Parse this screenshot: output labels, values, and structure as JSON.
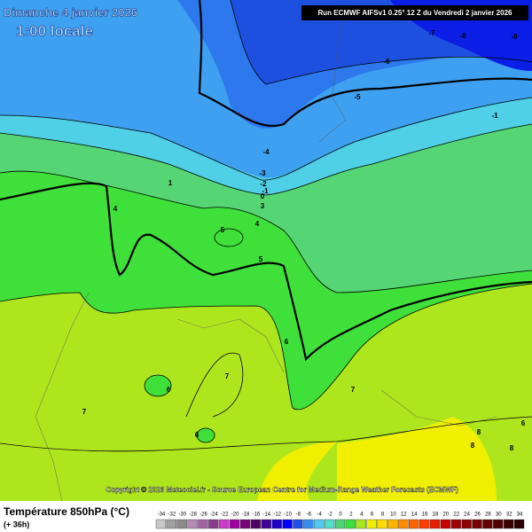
{
  "header": {
    "date": "Dimanche 4 janvier 2026",
    "time": "1:00 locale",
    "run": "Run ECMWF AIFSv1 0.25° 12 Z du Vendredi 2 janvier 2026"
  },
  "copyright": "Copyright © 2026 Meteociel.fr - Source European Centre for Medium-Range Weather Forecasts (ECMWF)",
  "footer": {
    "title": "Température 850hPa (°C)",
    "lead": "(+ 36h)"
  },
  "contour_labels": [
    "-7",
    "-8",
    "-9",
    "-6",
    "-5",
    "-1",
    "-4",
    "-3",
    "-2",
    "-1",
    "0",
    "1",
    "3",
    "4",
    "4",
    "5",
    "5",
    "6",
    "6",
    "6",
    "7",
    "7",
    "7",
    "8",
    "8",
    "6",
    "8"
  ],
  "legend": {
    "labels": [
      "-34",
      "-32",
      "-30",
      "-28",
      "-26",
      "-24",
      "-22",
      "-20",
      "-18",
      "-16",
      "-14",
      "-12",
      "-10",
      "-8",
      "-6",
      "-4",
      "-2",
      "0",
      "2",
      "4",
      "6",
      "8",
      "10",
      "12",
      "14",
      "16",
      "18",
      "20",
      "22",
      "24",
      "26",
      "28",
      "30",
      "32",
      "34"
    ],
    "colors": [
      "#c8c8c8",
      "#a0a0a0",
      "#8c8c8c",
      "#b48cb4",
      "#a064a0",
      "#8c3c8c",
      "#c83cc8",
      "#a000a0",
      "#780078",
      "#500064",
      "#3c0096",
      "#1e00c8",
      "#0000ff",
      "#1e50e6",
      "#3c8cf0",
      "#50c8f0",
      "#50e0c8",
      "#50d478",
      "#3ce03c",
      "#aae61e",
      "#f0f000",
      "#ffdc00",
      "#ffb400",
      "#ff8c00",
      "#ff6400",
      "#ff3c00",
      "#e61e00",
      "#c80000",
      "#a00000",
      "#8c0000",
      "#780000",
      "#640000",
      "#500000",
      "#3c0000",
      "#280000"
    ]
  }
}
